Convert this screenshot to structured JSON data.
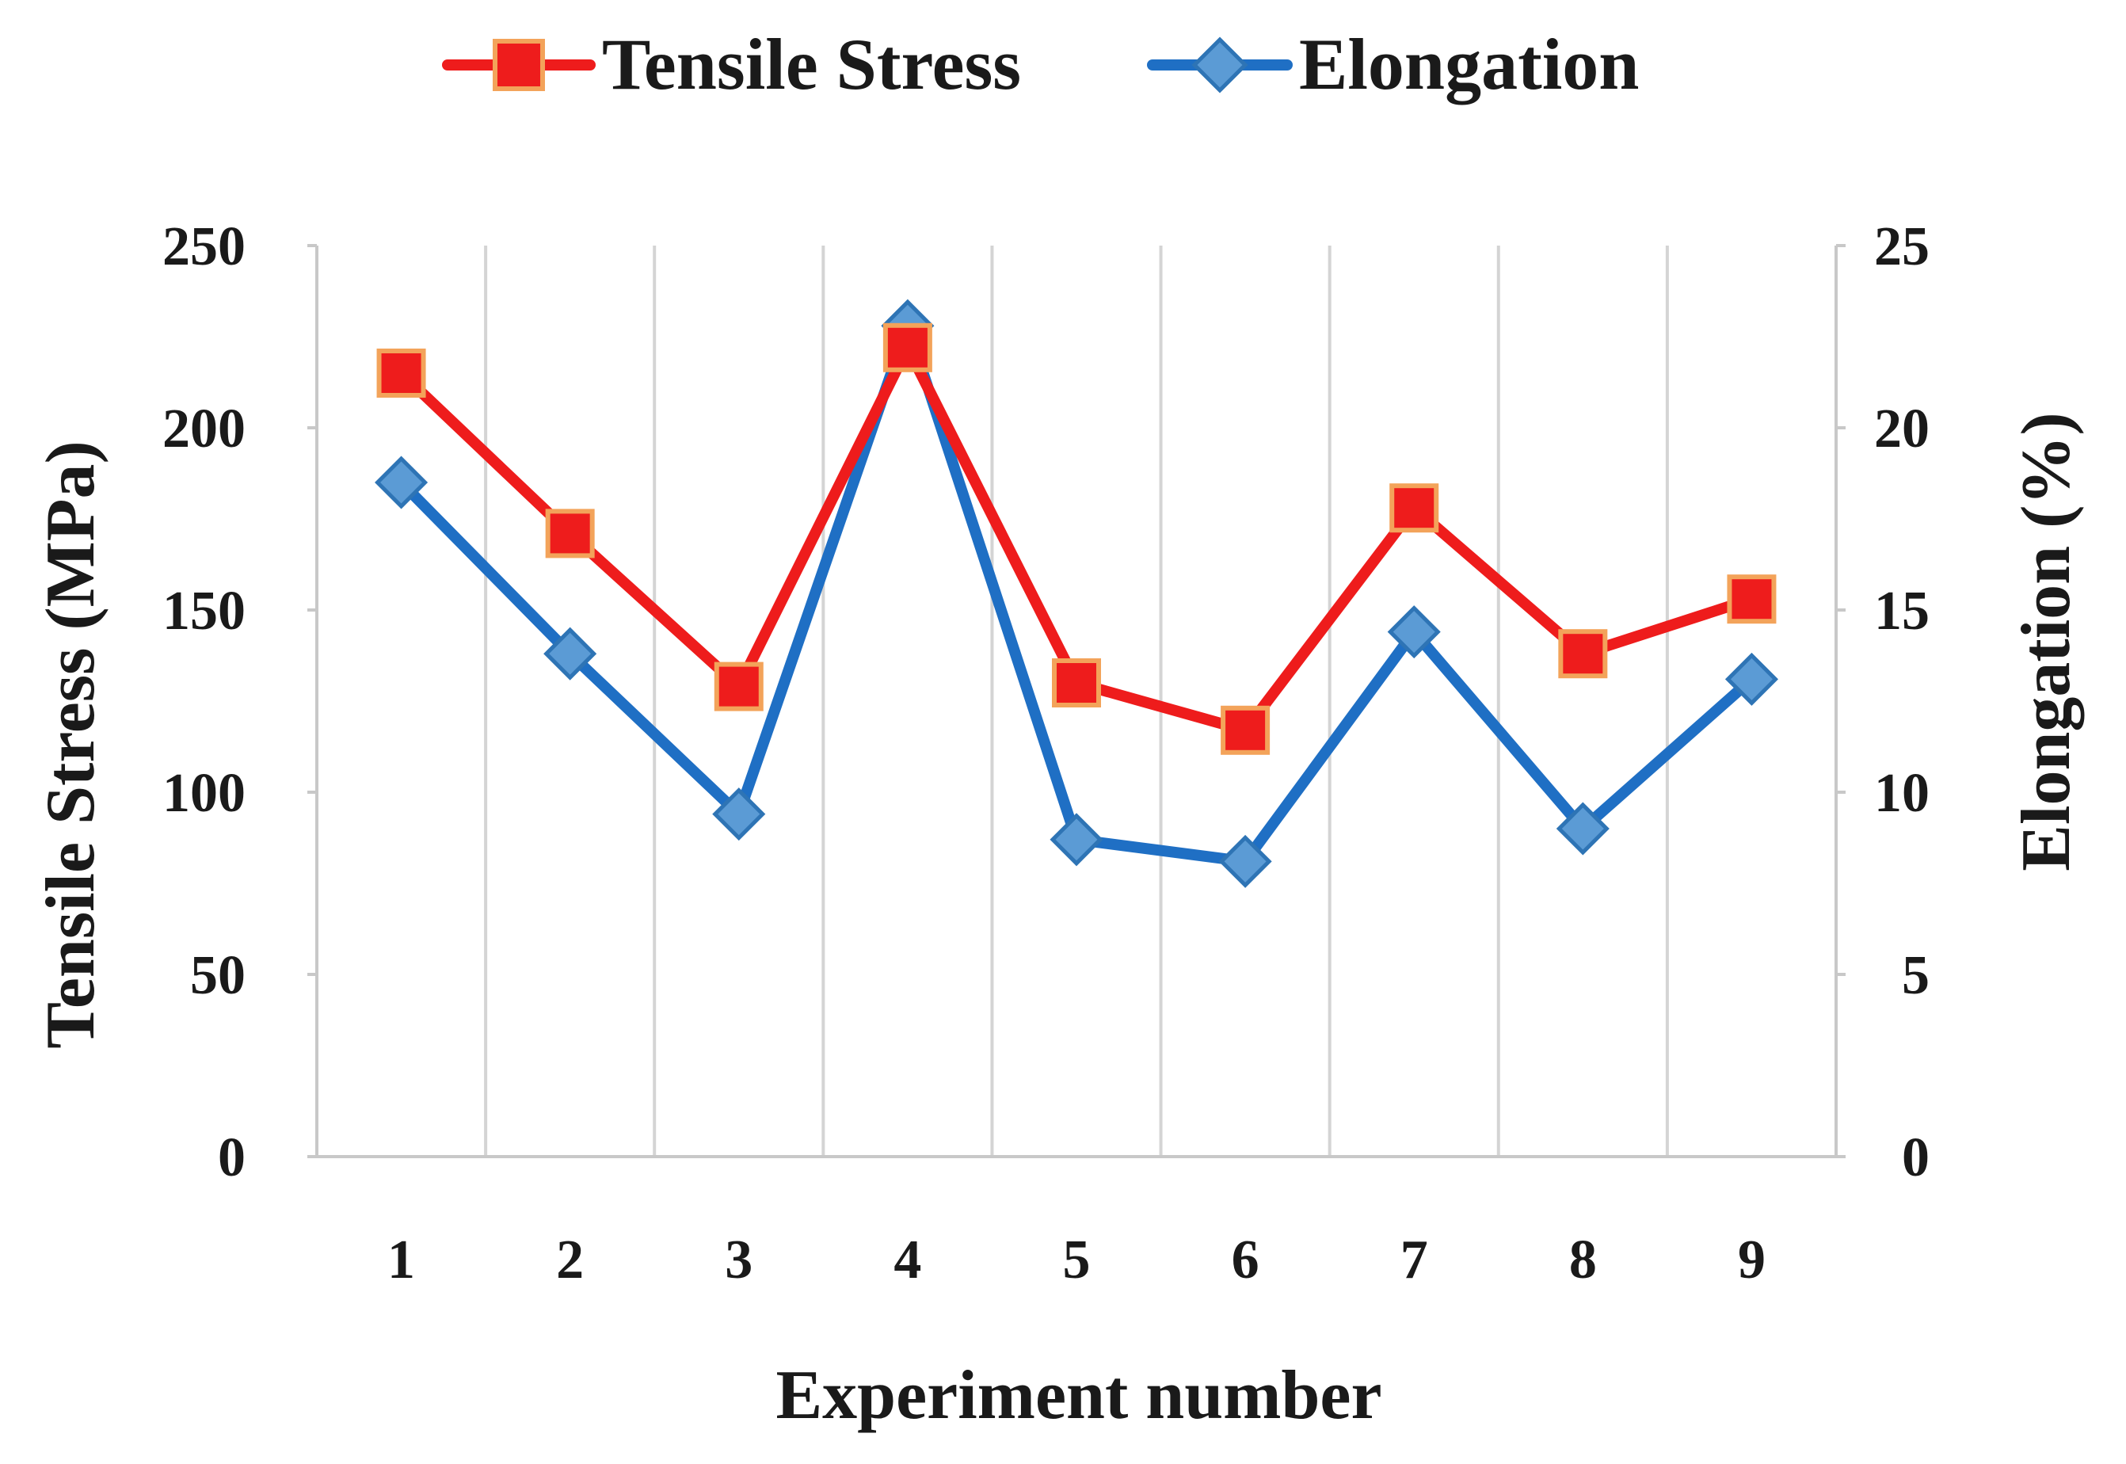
{
  "chart_data": {
    "type": "line",
    "title": "",
    "categories": [
      "1",
      "2",
      "3",
      "4",
      "5",
      "6",
      "7",
      "8",
      "9"
    ],
    "xlabel": "Experiment number",
    "ylabel": "Tensile Stress (MPa)",
    "y2label": "Elongation (%)",
    "ylim": [
      0,
      250
    ],
    "y2lim": [
      0,
      25
    ],
    "yticks": [
      "0",
      "50",
      "100",
      "150",
      "200",
      "250"
    ],
    "y2ticks": [
      "0",
      "5",
      "10",
      "15",
      "20",
      "25"
    ],
    "grid": "vertical",
    "legend_position": "top",
    "series": [
      {
        "name": "Tensile Stress",
        "axis": "left",
        "marker": "square",
        "color": "#ee1c1c",
        "marker_fill": "#ee1c1c",
        "marker_edge": "#f3a35a",
        "values": [
          215,
          171,
          129,
          222,
          130,
          117,
          178,
          138,
          153
        ]
      },
      {
        "name": "Elongation",
        "axis": "right",
        "marker": "diamond",
        "color": "#1f6fc4",
        "marker_fill": "#5b9bd5",
        "marker_edge": "#2e74b5",
        "values": [
          18.5,
          13.8,
          9.4,
          22.8,
          8.7,
          8.1,
          14.4,
          9.0,
          13.1
        ]
      }
    ]
  }
}
